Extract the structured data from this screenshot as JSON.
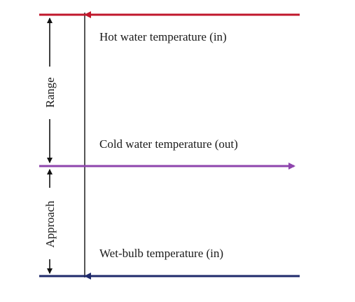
{
  "labels": {
    "hot": "Hot water temperature (in)",
    "cold": "Cold water temperature (out)",
    "wetbulb": "Wet-bulb temperature (in)",
    "range": "Range",
    "approach": "Approach"
  },
  "colors": {
    "hot": "#c0172b",
    "cold": "#8e44ad",
    "wetbulb": "#1f2a6b",
    "axis": "#555555",
    "marker": "#111111"
  }
}
